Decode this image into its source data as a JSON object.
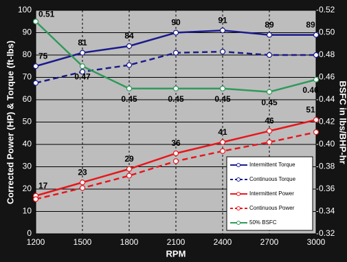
{
  "chart_data": {
    "type": "line",
    "x": [
      1200,
      1500,
      1800,
      2100,
      2400,
      2700,
      3000
    ],
    "xlim": [
      1200,
      3000
    ],
    "xticks": [
      1200,
      1500,
      1800,
      2100,
      2400,
      2700,
      3000
    ],
    "ylim": [
      0,
      100
    ],
    "yticks": [
      0,
      10,
      20,
      30,
      40,
      50,
      60,
      70,
      80,
      90,
      100
    ],
    "y2lim": [
      0.32,
      0.52
    ],
    "y2ticks": [
      0.32,
      0.34,
      0.36,
      0.38,
      {
        "value": 0.4,
        "label": "0.40"
      },
      0.42,
      0.44,
      0.46,
      0.48,
      {
        "value": 0.5,
        "label": "0.50"
      },
      0.52
    ],
    "xlabel": "RPM",
    "ylabel": "Corrected Power (HP) & Torque (ft-lbs)",
    "y2label": "BSFC in lbs/BHP-hr",
    "grid": true,
    "legend": "lower right",
    "series": [
      {
        "name": "Intermittent Torque",
        "color": "#1a1a8c",
        "dash": false,
        "labels": "above",
        "values": [
          75,
          81,
          84,
          90,
          91,
          89,
          89
        ]
      },
      {
        "name": "Continuous Torque",
        "color": "#1a1a8c",
        "dash": true,
        "values": [
          67.5,
          72.5,
          75.5,
          81,
          81.5,
          80,
          80
        ]
      },
      {
        "name": "Intermittent Power",
        "color": "#e8161b",
        "dash": false,
        "labels": "above",
        "values": [
          17,
          23,
          29,
          36,
          41,
          46,
          51
        ]
      },
      {
        "name": "Continuous Power",
        "color": "#e8161b",
        "dash": true,
        "values": [
          15.5,
          20.5,
          26,
          32.5,
          37,
          41,
          45.5
        ]
      },
      {
        "name": "50% BSFC",
        "color": "#2e9a5a",
        "dash": false,
        "axis": "y2",
        "labels": "below",
        "values": [
          0.51,
          0.47,
          0.45,
          0.45,
          0.45,
          0.447,
          0.458
        ],
        "value_labels": [
          "0.51",
          "0.47",
          "0.45",
          "0.45",
          "0.45",
          "0.45",
          "0.46"
        ]
      }
    ]
  }
}
